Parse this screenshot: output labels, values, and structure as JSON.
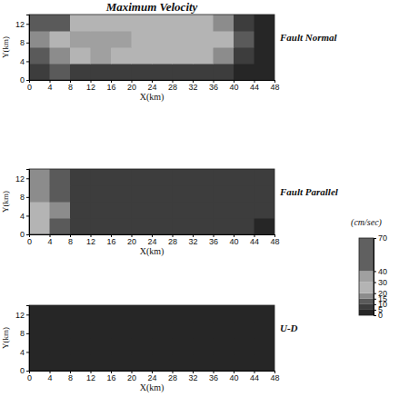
{
  "chart_data": [
    {
      "type": "heatmap",
      "title": "Maximum Velocity",
      "subtitle": "Fault Normal",
      "xlabel": "X(km)",
      "ylabel": "Y(km)",
      "xlim": [
        0,
        48
      ],
      "ylim": [
        0,
        14
      ],
      "xticks": [
        0,
        4,
        8,
        12,
        16,
        20,
        24,
        28,
        32,
        36,
        40,
        44,
        48
      ],
      "yticks": [
        0,
        4,
        8,
        12
      ],
      "x_edges": [
        0,
        4,
        8,
        12,
        16,
        20,
        24,
        28,
        32,
        36,
        40,
        44,
        48
      ],
      "y_edges": [
        0,
        3.5,
        7,
        10.5,
        14
      ],
      "cells": [
        [
          8,
          10,
          8,
          6,
          5,
          5,
          5,
          5,
          5,
          5,
          4,
          3
        ],
        [
          12,
          15,
          25,
          30,
          28,
          26,
          25,
          24,
          22,
          18,
          8,
          4
        ],
        [
          15,
          20,
          35,
          32,
          30,
          28,
          28,
          27,
          26,
          22,
          10,
          4
        ],
        [
          10,
          12,
          20,
          26,
          25,
          24,
          22,
          22,
          20,
          15,
          8,
          3
        ]
      ]
    },
    {
      "type": "heatmap",
      "subtitle": "Fault Parallel",
      "xlabel": "X(km)",
      "ylabel": "Y(km)",
      "xlim": [
        0,
        48
      ],
      "ylim": [
        0,
        14
      ],
      "xticks": [
        0,
        4,
        8,
        12,
        16,
        20,
        24,
        28,
        32,
        36,
        40,
        44,
        48
      ],
      "yticks": [
        0,
        4,
        8,
        12
      ],
      "x_edges": [
        0,
        4,
        8,
        12,
        16,
        20,
        24,
        28,
        32,
        36,
        40,
        44,
        48
      ],
      "y_edges": [
        0,
        3.5,
        7,
        10.5,
        14
      ],
      "cells": [
        [
          25,
          12,
          8,
          7,
          6,
          6,
          6,
          6,
          5,
          5,
          5,
          4
        ],
        [
          20,
          15,
          9,
          8,
          8,
          7,
          7,
          7,
          7,
          6,
          6,
          5
        ],
        [
          18,
          14,
          9,
          8,
          8,
          8,
          7,
          7,
          7,
          7,
          6,
          5
        ],
        [
          15,
          12,
          9,
          8,
          8,
          8,
          8,
          7,
          7,
          7,
          6,
          5
        ]
      ]
    },
    {
      "type": "heatmap",
      "subtitle": "U-D",
      "xlabel": "X(km)",
      "ylabel": "Y(km)",
      "xlim": [
        0,
        48
      ],
      "ylim": [
        0,
        14
      ],
      "xticks": [
        0,
        4,
        8,
        12,
        16,
        20,
        24,
        28,
        32,
        36,
        40,
        44,
        48
      ],
      "yticks": [
        0,
        4,
        8,
        12
      ],
      "x_edges": [
        0,
        4,
        8,
        12,
        16,
        20,
        24,
        28,
        32,
        36,
        40,
        44,
        48
      ],
      "y_edges": [
        0,
        3.5,
        7,
        10.5,
        14
      ],
      "cells": [
        [
          4,
          4,
          3,
          3,
          3,
          2,
          2,
          2,
          2,
          2,
          2,
          2
        ],
        [
          3,
          4,
          3,
          3,
          2,
          2,
          2,
          2,
          2,
          2,
          2,
          2
        ],
        [
          3,
          3,
          3,
          2,
          2,
          2,
          2,
          2,
          2,
          2,
          2,
          2
        ],
        [
          3,
          3,
          2,
          2,
          2,
          2,
          2,
          2,
          2,
          2,
          2,
          1
        ]
      ]
    }
  ],
  "colorbar": {
    "title": "(cm/sec)",
    "lim": [
      0,
      70
    ],
    "ticks": [
      0,
      5,
      10,
      15,
      20,
      30,
      40,
      70
    ],
    "colors": [
      "#262626",
      "#3d3d3d",
      "#5a5a5a",
      "#8c8c8c",
      "#b4b4b4",
      "#a0a0a0",
      "#606060"
    ]
  }
}
